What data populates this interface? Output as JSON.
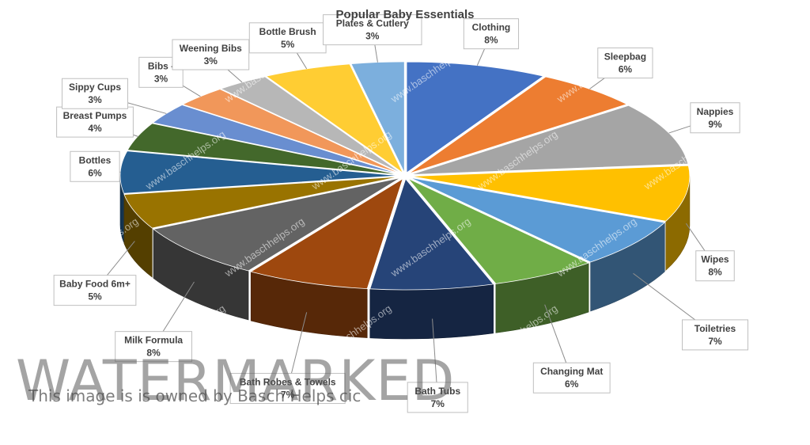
{
  "chart_data": {
    "type": "pie",
    "title": "Popular Baby Essentials",
    "style": "3d-exploded-pie",
    "categories": [
      "Clothing",
      "Sleepbag",
      "Nappies",
      "Wipes",
      "Toiletries",
      "Changing Mat",
      "Bath Tubs",
      "Bath Robes & Towels",
      "Milk Formula",
      "Baby Food 6m+",
      "Bottles",
      "Breast Pumps",
      "Sippy Cups",
      "Bibs -",
      "Weening Bibs",
      "Bottle Brush",
      "Plates & Cutlery"
    ],
    "values": [
      8,
      6,
      9,
      8,
      7,
      6,
      7,
      7,
      8,
      5,
      6,
      4,
      3,
      3,
      3,
      5,
      3
    ],
    "labels": [
      "Clothing\n8%",
      "Sleepbag\n6%",
      "Nappies\n9%",
      "Wipes\n8%",
      "Toiletries\n7%",
      "Changing Mat\n6%",
      "Bath Tubs\n7%",
      "Bath Robes & Towels\n7%",
      "Milk Formula\n8%",
      "Baby Food 6m+\n5%",
      "Bottles\n6%",
      "Breast Pumps\n4%",
      "Sippy Cups\n3%",
      "Bibs -\n3%",
      "Weening Bibs\n3%",
      "Bottle Brush\n5%",
      "Plates & Cutlery\n3%"
    ],
    "colors": [
      "#4472c4",
      "#ed7d31",
      "#a5a5a5",
      "#ffc000",
      "#5b9bd5",
      "#70ad47",
      "#264478",
      "#9e480e",
      "#636363",
      "#997300",
      "#255e91",
      "#43682b",
      "#698ed0",
      "#f1975a",
      "#b7b7b7",
      "#ffcd33",
      "#7cafdd"
    ],
    "legend": "none"
  },
  "watermark": {
    "big_text": "WATERMARKED",
    "owner_text": "This image is is owned by Basch Helps cic",
    "tile_text": "www.baschhelps.org"
  }
}
